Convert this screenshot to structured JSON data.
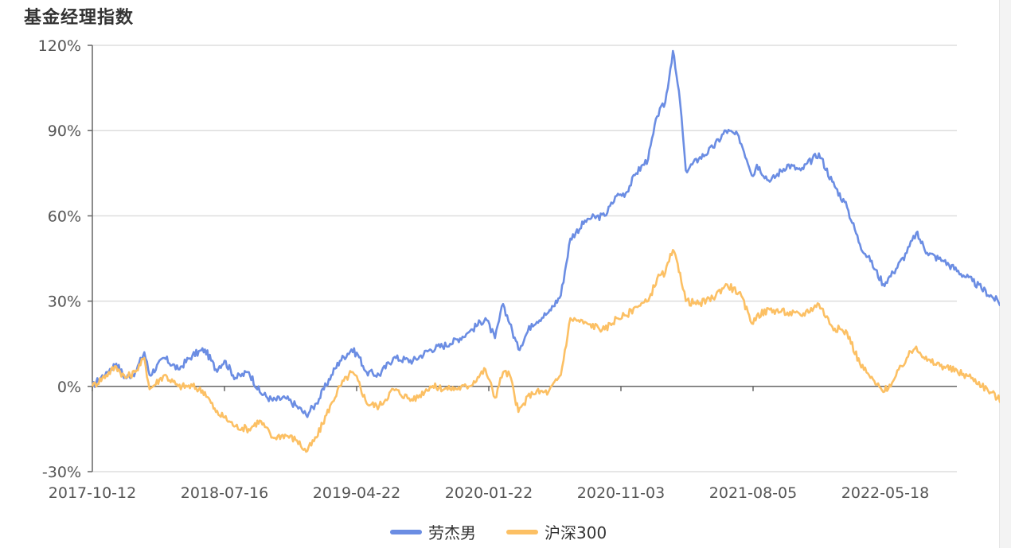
{
  "title": "基金经理指数",
  "colors": {
    "series1": "#6b8de3",
    "series2": "#fcc064",
    "grid": "#dddddd",
    "axis": "#666666"
  },
  "chart_data": {
    "type": "line",
    "title": "基金经理指数",
    "xlabel": "",
    "ylabel": "",
    "ylim": [
      -30,
      120
    ],
    "yticks": [
      -30,
      0,
      30,
      60,
      90,
      120
    ],
    "ytick_labels": [
      "-30%",
      "0%",
      "30%",
      "60%",
      "90%",
      "120%"
    ],
    "x_range": [
      "2017-10-12",
      "2022-12-30"
    ],
    "xtick_labels": [
      "2017-10-12",
      "2018-07-16",
      "2019-04-22",
      "2020-01-22",
      "2020-11-03",
      "2021-08-05",
      "2022-05-18"
    ],
    "grid": true,
    "legend_position": "bottom-center",
    "series": [
      {
        "name": "劳杰男",
        "points": [
          [
            "2017-10-12",
            0
          ],
          [
            "2017-11-10",
            5
          ],
          [
            "2017-12-01",
            8
          ],
          [
            "2017-12-20",
            3
          ],
          [
            "2018-01-10",
            5
          ],
          [
            "2018-01-29",
            12
          ],
          [
            "2018-02-09",
            4
          ],
          [
            "2018-03-12",
            10
          ],
          [
            "2018-04-10",
            6
          ],
          [
            "2018-05-10",
            11
          ],
          [
            "2018-06-05",
            13
          ],
          [
            "2018-06-28",
            6
          ],
          [
            "2018-07-16",
            9
          ],
          [
            "2018-08-08",
            3
          ],
          [
            "2018-09-05",
            5
          ],
          [
            "2018-09-28",
            -2
          ],
          [
            "2018-10-25",
            -5
          ],
          [
            "2018-11-20",
            -4
          ],
          [
            "2018-12-15",
            -7
          ],
          [
            "2019-01-03",
            -10
          ],
          [
            "2019-01-25",
            -6
          ],
          [
            "2019-02-25",
            4
          ],
          [
            "2019-03-15",
            9
          ],
          [
            "2019-04-08",
            13
          ],
          [
            "2019-04-22",
            11
          ],
          [
            "2019-05-10",
            5
          ],
          [
            "2019-06-05",
            4
          ],
          [
            "2019-07-05",
            10
          ],
          [
            "2019-08-15",
            9
          ],
          [
            "2019-09-20",
            13
          ],
          [
            "2019-11-01",
            15
          ],
          [
            "2019-12-10",
            19
          ],
          [
            "2020-01-14",
            24
          ],
          [
            "2020-02-03",
            17
          ],
          [
            "2020-02-20",
            29
          ],
          [
            "2020-03-05",
            22
          ],
          [
            "2020-03-23",
            13
          ],
          [
            "2020-04-20",
            22
          ],
          [
            "2020-05-25",
            26
          ],
          [
            "2020-06-20",
            32
          ],
          [
            "2020-07-10",
            52
          ],
          [
            "2020-08-15",
            59
          ],
          [
            "2020-09-20",
            60
          ],
          [
            "2020-10-15",
            67
          ],
          [
            "2020-11-03",
            68
          ],
          [
            "2020-11-25",
            75
          ],
          [
            "2020-12-20",
            80
          ],
          [
            "2021-01-08",
            95
          ],
          [
            "2021-01-25",
            100
          ],
          [
            "2021-02-10",
            118
          ],
          [
            "2021-02-25",
            100
          ],
          [
            "2021-03-09",
            76
          ],
          [
            "2021-04-05",
            80
          ],
          [
            "2021-05-05",
            84
          ],
          [
            "2021-06-01",
            90
          ],
          [
            "2021-06-28",
            88
          ],
          [
            "2021-07-28",
            74
          ],
          [
            "2021-08-05",
            78
          ],
          [
            "2021-09-01",
            72
          ],
          [
            "2021-10-08",
            78
          ],
          [
            "2021-11-05",
            76
          ],
          [
            "2021-12-13",
            82
          ],
          [
            "2022-01-10",
            72
          ],
          [
            "2022-02-10",
            63
          ],
          [
            "2022-03-09",
            50
          ],
          [
            "2022-03-31",
            44
          ],
          [
            "2022-04-27",
            36
          ],
          [
            "2022-05-18",
            40
          ],
          [
            "2022-06-15",
            47
          ],
          [
            "2022-07-05",
            54
          ],
          [
            "2022-07-28",
            47
          ],
          [
            "2022-09-01",
            44
          ],
          [
            "2022-10-31",
            37
          ],
          [
            "2022-12-30",
            29
          ]
        ]
      },
      {
        "name": "沪深300",
        "points": [
          [
            "2017-10-12",
            0
          ],
          [
            "2017-11-10",
            4
          ],
          [
            "2017-12-01",
            7
          ],
          [
            "2017-12-20",
            3
          ],
          [
            "2018-01-10",
            5
          ],
          [
            "2018-01-29",
            10
          ],
          [
            "2018-02-09",
            -1
          ],
          [
            "2018-03-12",
            4
          ],
          [
            "2018-04-10",
            0
          ],
          [
            "2018-05-10",
            0
          ],
          [
            "2018-06-05",
            -2
          ],
          [
            "2018-06-28",
            -9
          ],
          [
            "2018-07-16",
            -11
          ],
          [
            "2018-08-08",
            -14
          ],
          [
            "2018-09-05",
            -15
          ],
          [
            "2018-09-28",
            -12
          ],
          [
            "2018-10-25",
            -18
          ],
          [
            "2018-11-20",
            -17
          ],
          [
            "2018-12-15",
            -19
          ],
          [
            "2019-01-03",
            -23
          ],
          [
            "2019-01-25",
            -18
          ],
          [
            "2019-02-25",
            -6
          ],
          [
            "2019-03-15",
            0
          ],
          [
            "2019-04-08",
            5
          ],
          [
            "2019-04-22",
            2
          ],
          [
            "2019-05-10",
            -6
          ],
          [
            "2019-06-05",
            -7
          ],
          [
            "2019-07-05",
            -1
          ],
          [
            "2019-08-15",
            -5
          ],
          [
            "2019-09-20",
            0
          ],
          [
            "2019-11-01",
            -1
          ],
          [
            "2019-12-10",
            0
          ],
          [
            "2020-01-14",
            6
          ],
          [
            "2020-02-03",
            -4
          ],
          [
            "2020-02-20",
            5
          ],
          [
            "2020-03-05",
            4
          ],
          [
            "2020-03-23",
            -9
          ],
          [
            "2020-04-20",
            -2
          ],
          [
            "2020-05-25",
            -2
          ],
          [
            "2020-06-20",
            4
          ],
          [
            "2020-07-10",
            24
          ],
          [
            "2020-08-15",
            22
          ],
          [
            "2020-09-20",
            20
          ],
          [
            "2020-10-15",
            24
          ],
          [
            "2020-11-03",
            25
          ],
          [
            "2020-11-25",
            28
          ],
          [
            "2020-12-20",
            30
          ],
          [
            "2021-01-08",
            38
          ],
          [
            "2021-01-25",
            40
          ],
          [
            "2021-02-10",
            48
          ],
          [
            "2021-02-25",
            40
          ],
          [
            "2021-03-09",
            30
          ],
          [
            "2021-04-05",
            29
          ],
          [
            "2021-05-05",
            31
          ],
          [
            "2021-06-01",
            36
          ],
          [
            "2021-06-28",
            33
          ],
          [
            "2021-07-28",
            22
          ],
          [
            "2021-08-05",
            25
          ],
          [
            "2021-09-01",
            27
          ],
          [
            "2021-10-08",
            26
          ],
          [
            "2021-11-05",
            25
          ],
          [
            "2021-12-13",
            29
          ],
          [
            "2022-01-10",
            21
          ],
          [
            "2022-02-10",
            19
          ],
          [
            "2022-03-09",
            8
          ],
          [
            "2022-03-31",
            3
          ],
          [
            "2022-04-27",
            -2
          ],
          [
            "2022-05-18",
            2
          ],
          [
            "2022-06-15",
            10
          ],
          [
            "2022-07-05",
            14
          ],
          [
            "2022-07-28",
            9
          ],
          [
            "2022-09-01",
            7
          ],
          [
            "2022-10-31",
            3
          ],
          [
            "2022-12-30",
            -5
          ]
        ]
      }
    ]
  }
}
